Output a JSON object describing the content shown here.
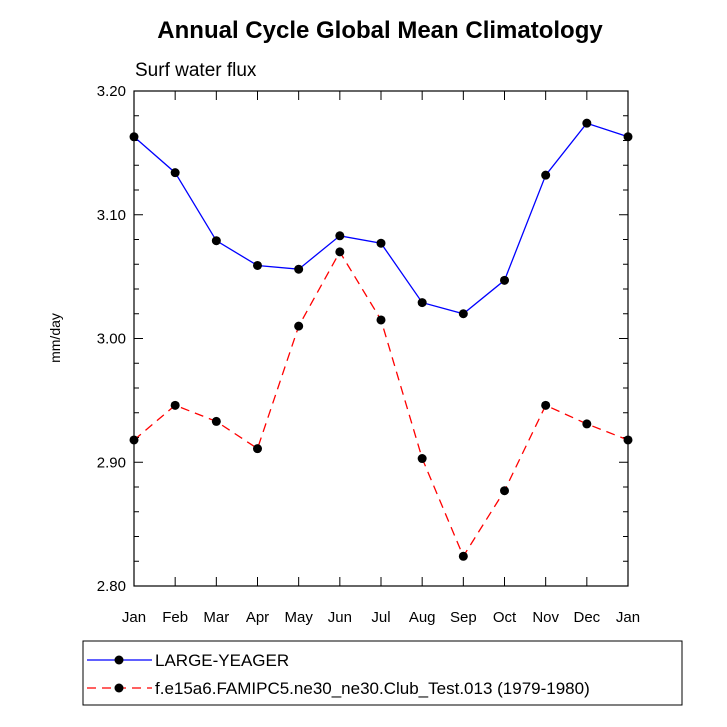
{
  "chart_data": {
    "type": "line",
    "title": "Annual Cycle Global Mean Climatology",
    "subtitle": "Surf water flux",
    "xlabel": "",
    "ylabel": "mm/day",
    "ylim": [
      2.8,
      3.2
    ],
    "yticks": [
      "3.20",
      "3.10",
      "3.00",
      "2.90",
      "2.80"
    ],
    "categories": [
      "Jan",
      "Feb",
      "Mar",
      "Apr",
      "May",
      "Jun",
      "Jul",
      "Aug",
      "Sep",
      "Oct",
      "Nov",
      "Dec",
      "Jan"
    ],
    "legend_position": "bottom",
    "series": [
      {
        "name": "LARGE-YEAGER",
        "color": "#0000ff",
        "dash": "solid",
        "marker": "filled-circle",
        "values": [
          3.163,
          3.134,
          3.079,
          3.059,
          3.056,
          3.083,
          3.077,
          3.029,
          3.02,
          3.047,
          3.132,
          3.174,
          3.163
        ]
      },
      {
        "name": "f.e15a6.FAMIPC5.ne30_ne30.Club_Test.013 (1979-1980)",
        "color": "#ff0000",
        "dash": "dashed",
        "marker": "filled-circle",
        "values": [
          2.918,
          2.946,
          2.933,
          2.911,
          3.01,
          3.07,
          3.015,
          2.903,
          2.824,
          2.877,
          2.946,
          2.931,
          2.918
        ]
      }
    ]
  }
}
